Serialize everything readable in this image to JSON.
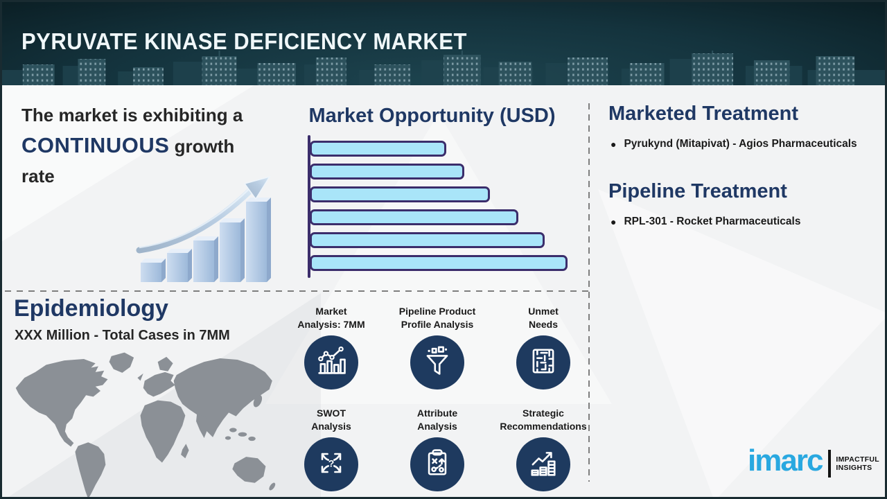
{
  "header": {
    "title": "PYRUVATE KINASE DEFICIENCY MARKET"
  },
  "statement": {
    "line1": "The market is exhibiting a",
    "highlight": "CONTINUOUS",
    "line2_rest": " growth",
    "line3": "rate"
  },
  "chart_data": {
    "type": "bar",
    "orientation": "horizontal",
    "title": "Market Opportunity (USD)",
    "series_note": "six unlabeled bars increasing in length top to bottom",
    "values_pct_of_max": [
      53,
      60,
      70,
      81,
      91,
      100
    ],
    "xlabel": "",
    "ylabel": "",
    "grid": false,
    "legend": false
  },
  "treatments": {
    "marketed": {
      "heading": "Marketed Treatment",
      "bullet": "Pyrukynd (Mitapivat) - Agios Pharmaceuticals"
    },
    "pipeline": {
      "heading": "Pipeline Treatment",
      "bullet": "RPL-301 - Rocket Pharmaceuticals"
    }
  },
  "epidemiology": {
    "heading": "Epidemiology",
    "subtitle": "XXX Million - Total Cases in 7MM"
  },
  "features": {
    "f1": {
      "line1": "Market",
      "line2": "Analysis: 7MM",
      "icon": "bar-chart-trend-icon"
    },
    "f2": {
      "line1": "Pipeline Product",
      "line2": "Profile Analysis",
      "icon": "funnel-icon"
    },
    "f3": {
      "line1": "Unmet",
      "line2": "Needs",
      "icon": "maze-icon"
    },
    "f4": {
      "line1": "SWOT",
      "line2": "Analysis",
      "icon": "swot-arrows-icon"
    },
    "f5": {
      "line1": "Attribute",
      "line2": "Analysis",
      "icon": "clipboard-strategy-icon"
    },
    "f6": {
      "line1": "Strategic",
      "line2": "Recommendations",
      "icon": "growth-arrow-bars-icon"
    }
  },
  "logo": {
    "brand": "imarc",
    "tagline1": "IMPACTFUL",
    "tagline2": "INSIGHTS"
  },
  "colors": {
    "accent_navy": "#1F3864",
    "text_dark": "#262626",
    "bar_fill": "#A9E5F9",
    "bar_border": "#3B2D6B",
    "circle_navy": "#1E3A5F",
    "imarc_blue": "#29A8E0",
    "map_gray": "#8B9096",
    "dash_gray": "#7E7E7E",
    "header_teal": "#13313B"
  }
}
